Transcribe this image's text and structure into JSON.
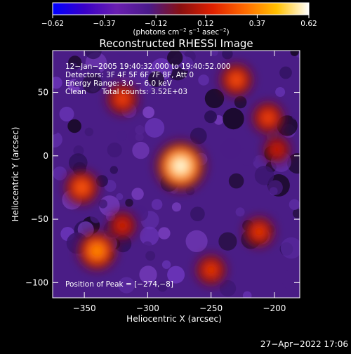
{
  "chart_data": {
    "type": "heatmap",
    "title": "Reconstructed RHESSI Image",
    "xlabel": "Heliocentric X (arcsec)",
    "ylabel": "Heliocentric Y (arcsec)",
    "xlim": [
      -375,
      -180
    ],
    "ylim": [
      -112,
      83
    ],
    "x_ticks": [
      -350,
      -300,
      -250,
      -200
    ],
    "x_tick_labels": [
      "−350",
      "−300",
      "−250",
      "−200"
    ],
    "y_ticks": [
      50,
      0,
      -50,
      -100
    ],
    "y_tick_labels": [
      "50",
      "0",
      "−50",
      "−100"
    ],
    "colorbar": {
      "ticks": [
        -0.62,
        -0.37,
        -0.12,
        0.12,
        0.37,
        0.62
      ],
      "tick_labels": [
        "−0.62",
        "−0.37",
        "−0.12",
        "0.12",
        "0.37",
        "0.62"
      ],
      "units_prefix": "(photons cm",
      "units_exp1": "−2",
      "units_mid": " s",
      "units_exp2": "−1",
      "units_mid2": " asec",
      "units_exp3": "−2",
      "units_suffix": ")",
      "colors": [
        "#0000ff",
        "#3a00c8",
        "#6a1fb0",
        "#4a1a8a",
        "#8a1010",
        "#e02000",
        "#ff6a00",
        "#ffc000",
        "#ffffff"
      ]
    },
    "info_lines": [
      "12−Jan−2005 19:40:32.000 to 19:40:52.000",
      "Detectors: 3F 4F 5F 6F 7F 8F, Att 0",
      "Energy Range: 3.0 − 6.0 keV"
    ],
    "info_clean": "Clean",
    "info_counts": "Total counts: 3.52E+03",
    "peak_label": "Position of Peak = [−274,−8]",
    "peak": {
      "x": -274,
      "y": -8,
      "value": 0.62
    },
    "hot_spots": [
      {
        "x": -274,
        "y": -8,
        "value": 0.62
      },
      {
        "x": -340,
        "y": -75,
        "value": 0.42
      },
      {
        "x": -352,
        "y": -25,
        "value": 0.34
      },
      {
        "x": -230,
        "y": 60,
        "value": 0.32
      },
      {
        "x": -205,
        "y": 30,
        "value": 0.3
      },
      {
        "x": -320,
        "y": 45,
        "value": 0.3
      },
      {
        "x": -250,
        "y": -90,
        "value": 0.28
      },
      {
        "x": -212,
        "y": -60,
        "value": 0.28
      },
      {
        "x": -320,
        "y": -55,
        "value": 0.24
      },
      {
        "x": -198,
        "y": 5,
        "value": 0.22
      }
    ]
  },
  "footer_date": "27−Apr−2022 17:06"
}
